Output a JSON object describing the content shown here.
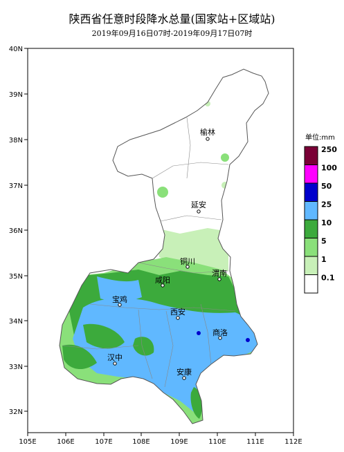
{
  "title": "陕西省任意时段降水总量(国家站+区域站)",
  "subtitle": "2019年09月16日07时-2019年09月17日07时",
  "axes": {
    "lon_labels": [
      "105E",
      "106E",
      "107E",
      "108E",
      "109E",
      "110E",
      "111E",
      "112E"
    ],
    "lat_labels": [
      "40N",
      "39N",
      "38N",
      "37N",
      "36N",
      "35N",
      "34N",
      "33N",
      "32N"
    ]
  },
  "cities": [
    {
      "name": "榆林"
    },
    {
      "name": "延安"
    },
    {
      "name": "铜川"
    },
    {
      "name": "渭南"
    },
    {
      "name": "咸阳"
    },
    {
      "name": "宝鸡"
    },
    {
      "name": "西安"
    },
    {
      "name": "商洛"
    },
    {
      "name": "汉中"
    },
    {
      "name": "安康"
    }
  ],
  "legend": {
    "title": "单位:mm",
    "items": [
      {
        "label": "250",
        "color": "#7a0036"
      },
      {
        "label": "100",
        "color": "#ff00ff"
      },
      {
        "label": "50",
        "color": "#0000cc"
      },
      {
        "label": "25",
        "color": "#60b8ff"
      },
      {
        "label": "10",
        "color": "#3caa3c"
      },
      {
        "label": "5",
        "color": "#8ae07a"
      },
      {
        "label": "1",
        "color": "#c8f0b8"
      },
      {
        "label": "0.1",
        "color": "#ffffff"
      }
    ]
  }
}
